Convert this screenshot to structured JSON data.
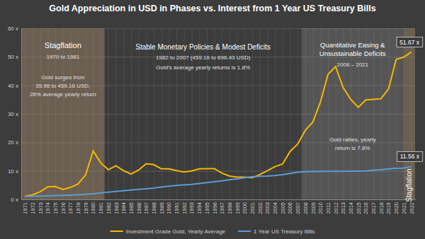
{
  "chart_data": {
    "type": "line",
    "title": "Gold Appreciation in USD in Phases vs. Interest from 1 Year US Treasury Bills",
    "x": [
      1971,
      1972,
      1973,
      1974,
      1975,
      1976,
      1977,
      1978,
      1979,
      1980,
      1981,
      1982,
      1983,
      1984,
      1985,
      1986,
      1987,
      1988,
      1989,
      1990,
      1991,
      1992,
      1993,
      1994,
      1995,
      1996,
      1997,
      1998,
      1999,
      2000,
      2001,
      2002,
      2003,
      2004,
      2005,
      2006,
      2007,
      2008,
      2009,
      2010,
      2011,
      2012,
      2013,
      2014,
      2015,
      2016,
      2017,
      2018,
      2019,
      2020,
      2021,
      2022
    ],
    "xlim": [
      1970.5,
      2022.5
    ],
    "xticks": [
      1971,
      1972,
      1973,
      1974,
      1975,
      1976,
      1977,
      1978,
      1979,
      1980,
      1981,
      1982,
      1983,
      1984,
      1985,
      1986,
      1987,
      1988,
      1989,
      1990,
      1991,
      1992,
      1993,
      1994,
      1995,
      1996,
      1997,
      1998,
      1999,
      2000,
      2001,
      2002,
      2003,
      2004,
      2005,
      2006,
      2007,
      2008,
      2009,
      2010,
      2011,
      2012,
      2013,
      2014,
      2015,
      2016,
      2017,
      2018,
      2019,
      2020,
      2021,
      2022
    ],
    "ylim": [
      0,
      60
    ],
    "yticks": [
      {
        "value": 0,
        "label": "0 x"
      },
      {
        "value": 10,
        "label": "10 x"
      },
      {
        "value": 20,
        "label": "20 x"
      },
      {
        "value": 30,
        "label": "30 x"
      },
      {
        "value": 40,
        "label": "40 x"
      },
      {
        "value": 50,
        "label": "50 x"
      },
      {
        "value": 60,
        "label": "60 x"
      }
    ],
    "grid": true,
    "legend": "bottom",
    "data_labels": true,
    "series": [
      {
        "name": "Investment Grade Gold, Yearly Average",
        "color": "#f5b800",
        "values": [
          1.1,
          1.6,
          2.7,
          4.4,
          4.5,
          3.5,
          4.2,
          5.4,
          8.6,
          17.0,
          12.8,
          10.4,
          11.8,
          10.1,
          8.9,
          10.3,
          12.5,
          12.2,
          10.7,
          10.7,
          10.1,
          9.6,
          10.0,
          10.7,
          10.8,
          10.8,
          9.2,
          8.2,
          7.8,
          7.8,
          7.6,
          8.7,
          10.1,
          11.5,
          12.4,
          16.8,
          19.4,
          24.2,
          27.1,
          34.1,
          43.8,
          46.6,
          39.2,
          35.1,
          32.3,
          34.9,
          35.1,
          35.3,
          38.8,
          49.1,
          49.9,
          51.67
        ],
        "value_labels": [
          null,
          null,
          null,
          null,
          null,
          null,
          null,
          null,
          null,
          null,
          null,
          null,
          null,
          null,
          null,
          null,
          null,
          null,
          null,
          null,
          null,
          null,
          null,
          null,
          null,
          null,
          null,
          null,
          null,
          null,
          null,
          null,
          null,
          null,
          null,
          null,
          null,
          null,
          null,
          null,
          null,
          null,
          null,
          null,
          null,
          null,
          null,
          null,
          null,
          null,
          null,
          "51.67 x"
        ]
      },
      {
        "name": "1 Year US Treasury Bills",
        "color": "#5b9bd5",
        "values": [
          1.04,
          1.09,
          1.17,
          1.27,
          1.35,
          1.42,
          1.5,
          1.62,
          1.78,
          1.99,
          2.28,
          2.53,
          2.76,
          3.05,
          3.31,
          3.52,
          3.73,
          3.99,
          4.33,
          4.65,
          4.92,
          5.1,
          5.27,
          5.55,
          5.87,
          6.19,
          6.53,
          6.86,
          7.19,
          7.63,
          7.94,
          8.09,
          8.19,
          8.36,
          8.68,
          9.11,
          9.52,
          9.74,
          9.79,
          9.82,
          9.84,
          9.86,
          9.88,
          9.89,
          9.92,
          9.99,
          10.2,
          10.4,
          10.7,
          10.9,
          11.0,
          11.56
        ],
        "value_labels": [
          null,
          null,
          null,
          null,
          null,
          null,
          null,
          null,
          null,
          null,
          null,
          null,
          null,
          null,
          null,
          null,
          null,
          null,
          null,
          null,
          null,
          null,
          null,
          null,
          null,
          null,
          null,
          null,
          null,
          null,
          null,
          null,
          null,
          null,
          null,
          null,
          null,
          null,
          null,
          null,
          null,
          null,
          null,
          null,
          null,
          null,
          null,
          null,
          null,
          null,
          null,
          "11.56 x"
        ]
      }
    ],
    "regions": [
      {
        "label": [
          "Stagflation"
        ],
        "subtitle": "1970 to 1981",
        "text": [
          "Gold surges from",
          "35.96 to 459.16 USD,",
          "26% average yearly return"
        ],
        "start": 1970.5,
        "end": 1981.5,
        "color": "rgba(196,160,120,0.35)"
      },
      {
        "label": [
          "Quantitative Easing &",
          "Unsustainable Deficits"
        ],
        "subtitle": "2008 – 2021",
        "text": [
          "Gold rallies, yearly",
          "return is 7.8%"
        ],
        "start": 2007.5,
        "end": 2021,
        "color": "rgba(255,255,255,0.13)"
      },
      {
        "label": [
          "Stagflation"
        ],
        "start": 2021,
        "end": 2022.5,
        "color": "rgba(196,160,120,0.35)"
      }
    ],
    "annotations": [
      {
        "title": "Stable Monetary Policies & Modest Deficits",
        "text": [
          "1982 to 2007 (459.16 to 696.43 USD)",
          "Gold’s average yearly returns is 1.8%"
        ]
      }
    ]
  }
}
